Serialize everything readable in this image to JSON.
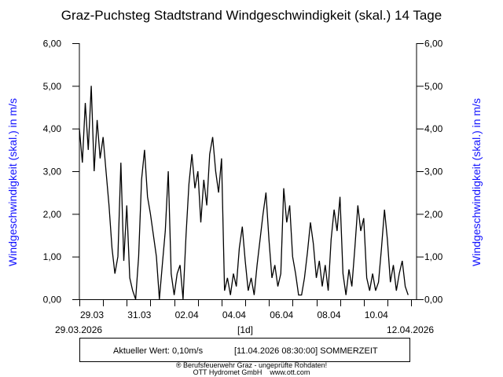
{
  "chart_data": {
    "type": "line",
    "title": "Graz-Puchsteg Stadtstrand Windgeschwindigkeit (skal.) 14 Tage",
    "ylabel": "Windgeschwindigkeit (skal.) in m/s",
    "ylim": [
      0,
      6
    ],
    "yticks": [
      "0,00",
      "1,00",
      "2,00",
      "3,00",
      "4,00",
      "5,00",
      "6,00"
    ],
    "xlim_days": [
      0,
      14
    ],
    "xtick_labels": [
      "29.03",
      "31.03",
      "02.04",
      "04.04",
      "06.04",
      "08.04",
      "10.04"
    ],
    "x_start_label": "29.03.2026",
    "x_end_label": "12.04.2026",
    "x_interval_label": "[1d]",
    "sample_interval_days": 0.125,
    "series_color": "#000000",
    "values": [
      4.0,
      3.2,
      4.6,
      3.5,
      5.0,
      3.0,
      4.2,
      3.3,
      3.8,
      3.0,
      2.2,
      1.2,
      0.6,
      1.0,
      3.2,
      0.9,
      2.2,
      0.5,
      0.2,
      0.0,
      1.0,
      2.8,
      3.5,
      2.4,
      2.0,
      1.5,
      1.0,
      0.0,
      0.8,
      1.6,
      3.0,
      0.6,
      0.1,
      0.6,
      0.8,
      0.0,
      1.5,
      2.7,
      3.4,
      2.6,
      3.0,
      1.8,
      2.8,
      2.2,
      3.4,
      3.8,
      3.0,
      2.5,
      3.3,
      0.2,
      0.5,
      0.1,
      0.6,
      0.3,
      1.2,
      1.7,
      0.9,
      0.2,
      0.5,
      0.1,
      0.8,
      1.4,
      2.0,
      2.5,
      1.4,
      0.5,
      0.8,
      0.3,
      0.6,
      2.6,
      1.8,
      2.2,
      1.0,
      0.6,
      0.1,
      0.1,
      0.5,
      1.1,
      1.8,
      1.3,
      0.5,
      0.9,
      0.3,
      0.8,
      0.2,
      1.4,
      2.1,
      1.6,
      2.4,
      0.6,
      0.1,
      0.7,
      0.3,
      1.2,
      2.2,
      1.6,
      1.9,
      0.5,
      0.2,
      0.6,
      0.2,
      0.4,
      1.2,
      2.1,
      1.4,
      0.4,
      0.8,
      0.2,
      0.6,
      0.9,
      0.3,
      0.1
    ]
  },
  "info": {
    "current_value": "Aktueller Wert: 0,10m/s",
    "timestamp": "[11.04.2026 08:30:00] SOMMERZEIT"
  },
  "footer": {
    "line1": "® Berufsfeuerwehr Graz - ungeprüfte Rohdaten!",
    "line2": "OTT Hydromet GmbH    www.ott.com"
  },
  "colors": {
    "ylabel": "#1010ff"
  }
}
